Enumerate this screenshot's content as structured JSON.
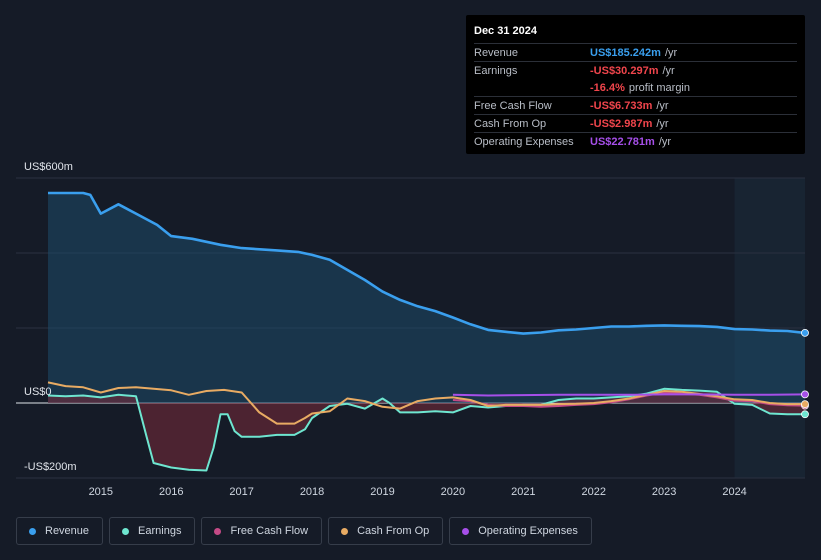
{
  "tooltip": {
    "date": "Dec 31 2024",
    "rows": [
      {
        "label": "Revenue",
        "value": "US$185.242m",
        "unit": "/yr",
        "color": "#3a9fee"
      },
      {
        "label": "Earnings",
        "value": "-US$30.297m",
        "unit": "/yr",
        "color": "#f0454c"
      },
      {
        "label": "",
        "value": "-16.4%",
        "unit": "profit margin",
        "color": "#f0454c"
      },
      {
        "label": "Free Cash Flow",
        "value": "-US$6.733m",
        "unit": "/yr",
        "color": "#f0454c"
      },
      {
        "label": "Cash From Op",
        "value": "-US$2.987m",
        "unit": "/yr",
        "color": "#f0454c"
      },
      {
        "label": "Operating Expenses",
        "value": "US$22.781m",
        "unit": "/yr",
        "color": "#a64fe9"
      }
    ]
  },
  "legend": [
    {
      "label": "Revenue",
      "color": "#3a9fee"
    },
    {
      "label": "Earnings",
      "color": "#6ee6d0"
    },
    {
      "label": "Free Cash Flow",
      "color": "#c44a86"
    },
    {
      "label": "Cash From Op",
      "color": "#e8ab63"
    },
    {
      "label": "Operating Expenses",
      "color": "#a64fe9"
    }
  ],
  "chart_data": {
    "type": "area",
    "ylabel_top": "US$600m",
    "ylabel_zero": "US$0",
    "ylabel_bottom": "-US$200m",
    "ylim": [
      -200,
      600
    ],
    "xlim": [
      2014.25,
      2025.0
    ],
    "x_ticks": [
      "2015",
      "2016",
      "2017",
      "2018",
      "2019",
      "2020",
      "2021",
      "2022",
      "2023",
      "2024"
    ],
    "x_tick_values": [
      2015,
      2016,
      2017,
      2018,
      2019,
      2020,
      2021,
      2022,
      2023,
      2024
    ],
    "highlight_start": 2024.0,
    "series": [
      {
        "name": "Revenue",
        "color": "#3a9fee",
        "points": [
          [
            2014.25,
            560
          ],
          [
            2014.75,
            560
          ],
          [
            2014.85,
            555
          ],
          [
            2015.0,
            505
          ],
          [
            2015.25,
            530
          ],
          [
            2015.5,
            505
          ],
          [
            2015.8,
            475
          ],
          [
            2016.0,
            445
          ],
          [
            2016.3,
            438
          ],
          [
            2016.7,
            422
          ],
          [
            2017.0,
            413
          ],
          [
            2017.5,
            407
          ],
          [
            2017.8,
            403
          ],
          [
            2018.0,
            395
          ],
          [
            2018.25,
            382
          ],
          [
            2018.5,
            355
          ],
          [
            2018.75,
            328
          ],
          [
            2019.0,
            297
          ],
          [
            2019.25,
            275
          ],
          [
            2019.5,
            258
          ],
          [
            2019.75,
            245
          ],
          [
            2020.0,
            228
          ],
          [
            2020.25,
            210
          ],
          [
            2020.5,
            195
          ],
          [
            2020.75,
            190
          ],
          [
            2021.0,
            185
          ],
          [
            2021.25,
            188
          ],
          [
            2021.5,
            194
          ],
          [
            2021.75,
            196
          ],
          [
            2022.0,
            200
          ],
          [
            2022.25,
            204
          ],
          [
            2022.5,
            204
          ],
          [
            2022.75,
            206
          ],
          [
            2023.0,
            207
          ],
          [
            2023.25,
            206
          ],
          [
            2023.5,
            205
          ],
          [
            2023.75,
            203
          ],
          [
            2024.0,
            197
          ],
          [
            2024.25,
            196
          ],
          [
            2024.5,
            193
          ],
          [
            2024.75,
            192
          ],
          [
            2025.0,
            187
          ]
        ]
      },
      {
        "name": "Earnings",
        "color": "#6ee6d0",
        "points": [
          [
            2014.25,
            20
          ],
          [
            2014.5,
            18
          ],
          [
            2014.75,
            20
          ],
          [
            2015.0,
            15
          ],
          [
            2015.25,
            22
          ],
          [
            2015.5,
            18
          ],
          [
            2015.65,
            -90
          ],
          [
            2015.75,
            -160
          ],
          [
            2016.0,
            -172
          ],
          [
            2016.25,
            -178
          ],
          [
            2016.5,
            -180
          ],
          [
            2016.6,
            -120
          ],
          [
            2016.7,
            -30
          ],
          [
            2016.8,
            -30
          ],
          [
            2016.9,
            -75
          ],
          [
            2017.0,
            -90
          ],
          [
            2017.25,
            -90
          ],
          [
            2017.5,
            -85
          ],
          [
            2017.75,
            -85
          ],
          [
            2017.9,
            -70
          ],
          [
            2018.0,
            -40
          ],
          [
            2018.25,
            -8
          ],
          [
            2018.5,
            -2
          ],
          [
            2018.75,
            -15
          ],
          [
            2019.0,
            12
          ],
          [
            2019.1,
            0
          ],
          [
            2019.25,
            -25
          ],
          [
            2019.5,
            -25
          ],
          [
            2019.75,
            -22
          ],
          [
            2020.0,
            -25
          ],
          [
            2020.25,
            -8
          ],
          [
            2020.5,
            -12
          ],
          [
            2020.75,
            -8
          ],
          [
            2021.0,
            -5
          ],
          [
            2021.25,
            -5
          ],
          [
            2021.5,
            8
          ],
          [
            2021.75,
            12
          ],
          [
            2022.0,
            12
          ],
          [
            2022.25,
            15
          ],
          [
            2022.5,
            18
          ],
          [
            2022.75,
            25
          ],
          [
            2023.0,
            38
          ],
          [
            2023.25,
            35
          ],
          [
            2023.5,
            33
          ],
          [
            2023.75,
            30
          ],
          [
            2024.0,
            -2
          ],
          [
            2024.25,
            -5
          ],
          [
            2024.5,
            -28
          ],
          [
            2024.75,
            -30
          ],
          [
            2025.0,
            -30
          ]
        ]
      },
      {
        "name": "Free Cash Flow",
        "color": "#c44a86",
        "points": [
          [
            2020.0,
            8
          ],
          [
            2020.25,
            5
          ],
          [
            2020.5,
            -5
          ],
          [
            2020.75,
            -8
          ],
          [
            2021.0,
            -8
          ],
          [
            2021.25,
            -10
          ],
          [
            2021.5,
            -8
          ],
          [
            2021.75,
            -5
          ],
          [
            2022.0,
            -3
          ],
          [
            2022.25,
            2
          ],
          [
            2022.5,
            10
          ],
          [
            2022.75,
            20
          ],
          [
            2023.0,
            28
          ],
          [
            2023.25,
            25
          ],
          [
            2023.5,
            22
          ],
          [
            2023.75,
            15
          ],
          [
            2024.0,
            6
          ],
          [
            2024.25,
            5
          ],
          [
            2024.5,
            -3
          ],
          [
            2024.75,
            -6
          ],
          [
            2025.0,
            -7
          ]
        ]
      },
      {
        "name": "Cash From Op",
        "color": "#e8ab63",
        "points": [
          [
            2014.25,
            55
          ],
          [
            2014.5,
            45
          ],
          [
            2014.75,
            42
          ],
          [
            2015.0,
            28
          ],
          [
            2015.25,
            40
          ],
          [
            2015.5,
            42
          ],
          [
            2015.75,
            38
          ],
          [
            2016.0,
            34
          ],
          [
            2016.25,
            22
          ],
          [
            2016.5,
            32
          ],
          [
            2016.75,
            35
          ],
          [
            2017.0,
            28
          ],
          [
            2017.25,
            -25
          ],
          [
            2017.5,
            -55
          ],
          [
            2017.75,
            -55
          ],
          [
            2017.9,
            -40
          ],
          [
            2018.0,
            -28
          ],
          [
            2018.25,
            -22
          ],
          [
            2018.5,
            12
          ],
          [
            2018.75,
            5
          ],
          [
            2019.0,
            -10
          ],
          [
            2019.25,
            -15
          ],
          [
            2019.5,
            5
          ],
          [
            2019.75,
            12
          ],
          [
            2020.0,
            15
          ],
          [
            2020.25,
            8
          ],
          [
            2020.5,
            -8
          ],
          [
            2020.75,
            -5
          ],
          [
            2021.0,
            -5
          ],
          [
            2021.25,
            -5
          ],
          [
            2021.5,
            -3
          ],
          [
            2021.75,
            -2
          ],
          [
            2022.0,
            0
          ],
          [
            2022.25,
            5
          ],
          [
            2022.5,
            12
          ],
          [
            2022.75,
            22
          ],
          [
            2023.0,
            32
          ],
          [
            2023.25,
            30
          ],
          [
            2023.5,
            24
          ],
          [
            2023.75,
            18
          ],
          [
            2024.0,
            10
          ],
          [
            2024.25,
            8
          ],
          [
            2024.5,
            0
          ],
          [
            2024.75,
            -3
          ],
          [
            2025.0,
            -3
          ]
        ]
      },
      {
        "name": "Operating Expenses",
        "color": "#a64fe9",
        "points": [
          [
            2020.0,
            22
          ],
          [
            2020.5,
            20
          ],
          [
            2021.0,
            21
          ],
          [
            2021.5,
            22
          ],
          [
            2022.0,
            22
          ],
          [
            2022.5,
            22
          ],
          [
            2023.0,
            23
          ],
          [
            2023.5,
            23
          ],
          [
            2024.0,
            22
          ],
          [
            2024.5,
            22
          ],
          [
            2025.0,
            23
          ]
        ]
      }
    ]
  }
}
